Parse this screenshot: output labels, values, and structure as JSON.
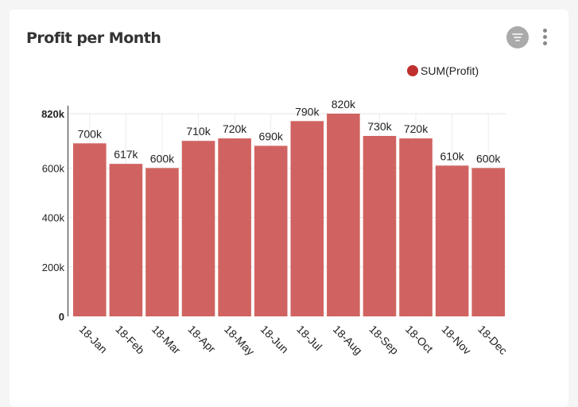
{
  "card": {
    "title": "Profit per Month",
    "filter_icon": "filter-icon",
    "menu_icon": "more-vertical-icon"
  },
  "chart_data": {
    "type": "bar",
    "title": "Profit per Month",
    "categories": [
      "18-Jan",
      "18-Feb",
      "18-Mar",
      "18-Apr",
      "18-May",
      "18-Jun",
      "18-Jul",
      "18-Aug",
      "18-Sep",
      "18-Oct",
      "18-Nov",
      "18-Dec"
    ],
    "series": [
      {
        "name": "SUM(Profit)",
        "color": "#d06361",
        "values": [
          700000,
          617000,
          600000,
          710000,
          720000,
          690000,
          790000,
          820000,
          730000,
          720000,
          610000,
          600000
        ]
      }
    ],
    "data_labels": [
      "700k",
      "617k",
      "600k",
      "710k",
      "720k",
      "690k",
      "790k",
      "820k",
      "730k",
      "720k",
      "610k",
      "600k"
    ],
    "yticks": [
      {
        "value": 0,
        "label": "0"
      },
      {
        "value": 200000,
        "label": "200k"
      },
      {
        "value": 400000,
        "label": "400k"
      },
      {
        "value": 600000,
        "label": "600k"
      },
      {
        "value": 820000,
        "label": "820k"
      }
    ],
    "ylim": [
      0,
      820000
    ],
    "legend": {
      "label": "SUM(Profit)",
      "position": "top-right",
      "color": "#c0302e"
    },
    "grid": true
  }
}
